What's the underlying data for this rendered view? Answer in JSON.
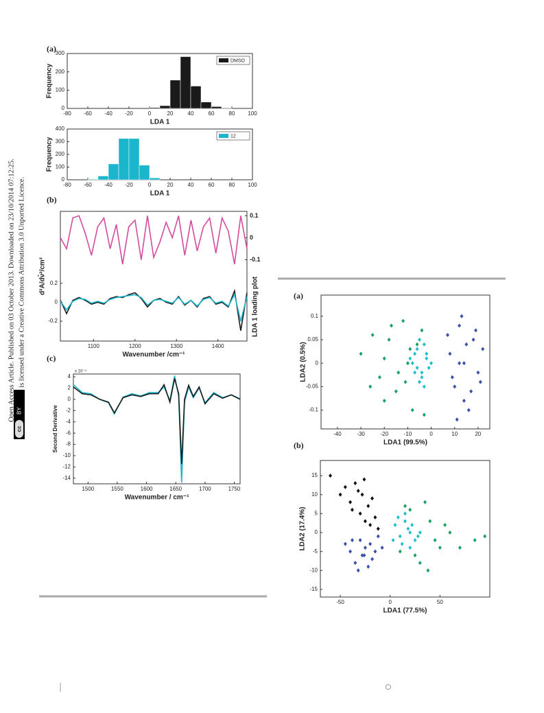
{
  "side_text": [
    "Open Access Article. Published on 03 October 2013. Downloaded on 23/10/2014 07:12:25.",
    "This article is licensed under a Creative Commons Attribution 3.0 Unported Licence."
  ],
  "badge": [
    "cc",
    "BY"
  ],
  "panel_labels": [
    "(a)",
    "(b)",
    "(c)",
    "(a)",
    "(b)"
  ],
  "chart_data": [
    {
      "type": "histogram",
      "x_label": "LDA 1",
      "y_label": "Frequency",
      "bins": [
        0,
        10,
        20,
        30,
        40,
        50,
        60,
        70,
        80
      ],
      "series": [
        {
          "name": "DMSO",
          "color": "#1a1a1a",
          "values": [
            5,
            15,
            155,
            283,
            122,
            35,
            10,
            3
          ]
        }
      ],
      "xlim": [
        -80,
        100
      ],
      "xticks": [
        -80,
        -60,
        -40,
        -20,
        0,
        20,
        40,
        60,
        80,
        100
      ],
      "ylim": [
        0,
        300
      ],
      "yticks": [
        0,
        100,
        200,
        300
      ],
      "legend": "upper right"
    },
    {
      "type": "histogram",
      "x_label": "LDA 1",
      "y_label": "Frequency",
      "bins": [
        -60,
        -50,
        -40,
        -30,
        -20,
        -10,
        0,
        10
      ],
      "series": [
        {
          "name": "12",
          "color": "#1bb5cc",
          "values": [
            5,
            30,
            125,
            325,
            325,
            115,
            15
          ]
        }
      ],
      "xlim": [
        -80,
        100
      ],
      "xticks": [
        -80,
        -60,
        -40,
        -20,
        0,
        20,
        40,
        60,
        80,
        100
      ],
      "ylim": [
        0,
        400
      ],
      "yticks": [
        0,
        100,
        200,
        300,
        400
      ],
      "legend": "upper right"
    },
    {
      "type": "line",
      "x_label": "Wavenumber /cm⁻¹",
      "y_label": "d²A/dν̃²/cm²",
      "y2_label": "LDA 1 loading plot",
      "x": [
        1020,
        1035,
        1050,
        1065,
        1080,
        1095,
        1110,
        1125,
        1140,
        1155,
        1170,
        1185,
        1200,
        1215,
        1230,
        1245,
        1260,
        1275,
        1290,
        1305,
        1320,
        1335,
        1350,
        1365,
        1380,
        1395,
        1410,
        1425,
        1440,
        1455,
        1470
      ],
      "series": [
        {
          "color": "#d44a9e",
          "axis": "y2",
          "values": [
            0.0,
            -0.05,
            0.09,
            0.1,
            0.02,
            -0.08,
            0.05,
            0.09,
            -0.05,
            0.06,
            -0.12,
            0.05,
            0.08,
            -0.1,
            0.1,
            -0.09,
            -0.02,
            0.07,
            0.0,
            0.1,
            -0.08,
            0.08,
            -0.06,
            0.05,
            0.09,
            -0.07,
            0.09,
            0.03,
            -0.12,
            0.1,
            -0.05
          ]
        },
        {
          "color": "#1a1a1a",
          "values": [
            0.02,
            -0.12,
            0.02,
            0.05,
            0.02,
            -0.02,
            0.0,
            -0.02,
            0.04,
            0.06,
            0.05,
            0.08,
            0.1,
            0.04,
            -0.05,
            0.02,
            0.04,
            0.0,
            -0.02,
            0.06,
            -0.03,
            0.02,
            -0.05,
            0.04,
            0.06,
            -0.02,
            0.0,
            -0.05,
            0.12,
            -0.3,
            0.1
          ]
        },
        {
          "color": "#1bb5cc",
          "values": [
            0.01,
            -0.08,
            0.01,
            0.04,
            0.03,
            -0.01,
            0.01,
            -0.01,
            0.03,
            0.05,
            0.06,
            0.07,
            0.08,
            0.05,
            -0.03,
            0.02,
            0.03,
            0.01,
            -0.01,
            0.05,
            -0.02,
            0.02,
            -0.04,
            0.03,
            0.05,
            -0.01,
            0.01,
            -0.04,
            0.08,
            -0.2,
            0.06
          ]
        }
      ],
      "xlim": [
        1020,
        1470
      ],
      "xticks": [
        1100,
        1200,
        1300,
        1400
      ],
      "ylim": [
        -0.41,
        0.96
      ],
      "yticks": [
        -0.2,
        0,
        0.2
      ],
      "y2lim": [
        -0.47,
        0.12
      ],
      "y2ticks": [
        -0.1,
        0,
        0.1
      ]
    },
    {
      "type": "line",
      "x_label": "Wavenumber / cm⁻¹",
      "y_label": "Second Derivative",
      "y_multiplier": "x 10⁻⁴",
      "x": [
        1475,
        1490,
        1505,
        1520,
        1535,
        1545,
        1560,
        1575,
        1590,
        1605,
        1620,
        1630,
        1640,
        1648,
        1655,
        1660,
        1665,
        1672,
        1680,
        1690,
        1700,
        1715,
        1730,
        1745,
        1760
      ],
      "series": [
        {
          "color": "#1bb5cc",
          "values": [
            2.6,
            1.2,
            1,
            0,
            -0.6,
            -2.6,
            0.4,
            1,
            0.6,
            1.2,
            1.2,
            2.2,
            -0.2,
            4.2,
            0.5,
            -14.8,
            -0.5,
            2.2,
            0.3,
            2,
            -0.6,
            1.2,
            0.3,
            0.8,
            0.1
          ]
        },
        {
          "color": "#1a1a1a",
          "values": [
            2.2,
            1,
            0.8,
            0,
            -0.5,
            -2.4,
            0.3,
            0.8,
            0.5,
            1,
            1,
            2.6,
            -0.5,
            3.7,
            1,
            -11.5,
            0,
            2.5,
            0.5,
            2.2,
            -0.8,
            1,
            0.2,
            0.8,
            0
          ]
        }
      ],
      "xlim": [
        1475,
        1760
      ],
      "xticks": [
        1500,
        1550,
        1600,
        1650,
        1700,
        1750
      ],
      "ylim": [
        -15,
        4.5
      ],
      "yticks": [
        -14,
        -12,
        -10,
        -8,
        -6,
        -4,
        -2,
        0,
        2,
        4
      ]
    },
    {
      "type": "scatter",
      "x_label": "LDA1  (99.5%)",
      "y_label": "LDA2  (0.5%)",
      "series": [
        {
          "color": "#1aa060",
          "x": [
            -30,
            -25,
            -22,
            -20,
            -18,
            -15,
            -12,
            -10,
            -8,
            -6,
            -20,
            -14,
            -26,
            -4,
            -9,
            -17,
            -3,
            -11
          ],
          "values": [
            0.02,
            0.06,
            -0.03,
            -0.08,
            0.05,
            -0.06,
            0.09,
            0.0,
            -0.1,
            0.04,
            0.01,
            -0.02,
            -0.05,
            0.07,
            0.03,
            0.08,
            -0.11,
            -0.04
          ]
        },
        {
          "color": "#3a4fa8",
          "x": [
            8,
            10,
            12,
            14,
            16,
            18,
            20,
            22,
            11,
            13,
            15,
            9,
            17,
            19,
            12,
            14,
            21,
            7
          ],
          "values": [
            0.02,
            -0.05,
            0.08,
            0.0,
            -0.1,
            0.05,
            -0.02,
            0.03,
            -0.12,
            0.1,
            0.04,
            -0.03,
            -0.06,
            0.07,
            0.0,
            -0.08,
            -0.04,
            0.06
          ]
        },
        {
          "color": "#1ec0d0",
          "x": [
            -8,
            -6,
            -4,
            -2,
            -5,
            -7,
            -3,
            -1,
            -9,
            -4,
            -6,
            -2,
            0,
            -5,
            -3,
            -7
          ],
          "values": [
            0.0,
            0.03,
            -0.02,
            0.01,
            -0.04,
            0.02,
            0.04,
            -0.01,
            0.01,
            -0.03,
            -0.01,
            0.02,
            0.0,
            0.05,
            -0.05,
            -0.02
          ]
        }
      ],
      "xlim": [
        -47,
        25
      ],
      "xticks": [
        -40,
        -30,
        -20,
        -10,
        0,
        10,
        20
      ],
      "ylim": [
        -0.14,
        0.145
      ],
      "yticks": [
        -0.1,
        -0.05,
        0,
        0.05,
        0.1
      ]
    },
    {
      "type": "scatter",
      "x_label": "LDA1  (77.5%)",
      "y_label": "LDA2  (17.4%)",
      "series": [
        {
          "color": "#111111",
          "x": [
            -60,
            -45,
            -40,
            -35,
            -30,
            -28,
            -25,
            -22,
            -20,
            -18,
            -15,
            -32,
            -38,
            -26,
            -12,
            -50
          ],
          "values": [
            15,
            12,
            8,
            13,
            5,
            10,
            3,
            7,
            2,
            9,
            4,
            11,
            6,
            14,
            1,
            10
          ]
        },
        {
          "color": "#1aa060",
          "x": [
            10,
            20,
            30,
            40,
            50,
            35,
            45,
            25,
            55,
            85,
            70,
            15,
            38,
            60,
            95
          ],
          "values": [
            -5,
            6,
            -8,
            3,
            -4,
            8,
            -2,
            -6,
            2,
            -2,
            -4,
            7,
            -10,
            0,
            -1
          ]
        },
        {
          "color": "#3a4fa8",
          "x": [
            -45,
            -40,
            -35,
            -30,
            -28,
            -25,
            -22,
            -20,
            -18,
            -15,
            -12,
            -8,
            -32,
            -26,
            -38
          ],
          "values": [
            -3,
            -5,
            -8,
            -2,
            -6,
            -4,
            -9,
            -3,
            -7,
            -5,
            -1,
            -4,
            -10,
            -6,
            -2
          ]
        },
        {
          "color": "#1ec0d0",
          "x": [
            5,
            10,
            15,
            20,
            25,
            18,
            12,
            8,
            22,
            28,
            15,
            30,
            3,
            20
          ],
          "values": [
            2,
            -1,
            3,
            0,
            -2,
            1,
            -3,
            4,
            2,
            -1,
            5,
            0,
            -2,
            -4
          ]
        }
      ],
      "xlim": [
        -70,
        100
      ],
      "xticks": [
        -50,
        0,
        50
      ],
      "ylim": [
        -17,
        19
      ],
      "yticks": [
        -15,
        -10,
        -5,
        0,
        5,
        10,
        15
      ]
    }
  ]
}
